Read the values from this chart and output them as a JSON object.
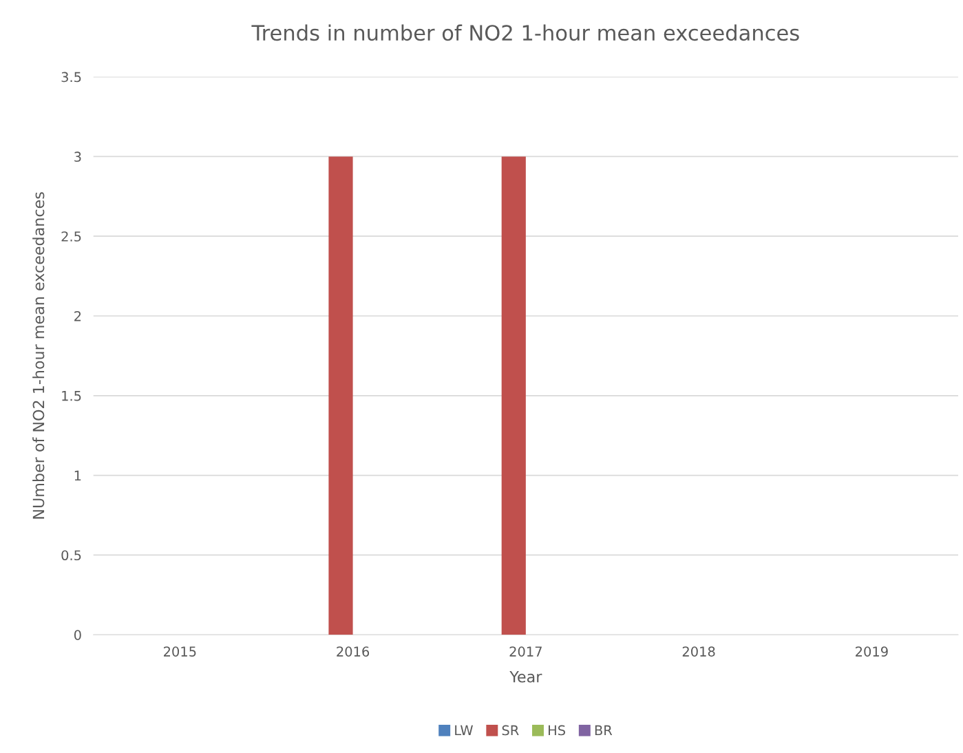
{
  "chart_data": {
    "type": "bar",
    "title": "Trends in number of NO2 1-hour mean exceedances",
    "xlabel": "Year",
    "ylabel": "NUmber of NO2 1-hour mean exceedances",
    "categories": [
      "2015",
      "2016",
      "2017",
      "2018",
      "2019"
    ],
    "series": [
      {
        "name": "LW",
        "color": "#4f81bd",
        "values": [
          0,
          0,
          0,
          0,
          0
        ]
      },
      {
        "name": "SR",
        "color": "#c0504d",
        "values": [
          0,
          3,
          3,
          0,
          0
        ]
      },
      {
        "name": "HS",
        "color": "#9bbb59",
        "values": [
          0,
          0,
          0,
          0,
          0
        ]
      },
      {
        "name": "BR",
        "color": "#8064a2",
        "values": [
          0,
          0,
          0,
          0,
          0
        ]
      }
    ],
    "ylim": [
      0,
      3.5
    ],
    "yticks": [
      0,
      0.5,
      1,
      1.5,
      2,
      2.5,
      3,
      3.5
    ],
    "grid": "y",
    "legend": "bottom"
  }
}
